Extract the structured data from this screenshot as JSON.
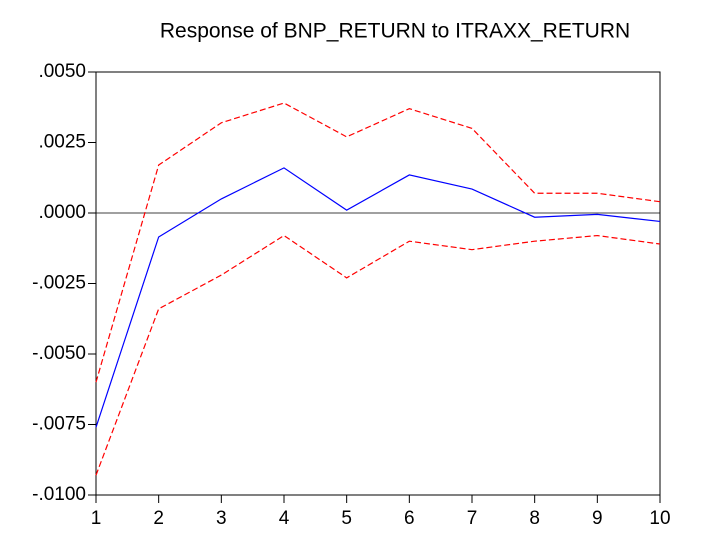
{
  "chart_data": {
    "type": "line",
    "title": "Response of BNP_RETURN to ITRAXX_RETURN",
    "x": [
      1,
      2,
      3,
      4,
      5,
      6,
      7,
      8,
      9,
      10
    ],
    "series": [
      {
        "color": "#0000ff",
        "dash": false,
        "values": [
          -0.0076,
          -0.00085,
          0.0005,
          0.0016,
          0.0001,
          0.00135,
          0.00085,
          -0.00015,
          -5e-05,
          -0.0003
        ]
      },
      {
        "color": "#ff0000",
        "dash": true,
        "values": [
          -0.006,
          0.0017,
          0.0032,
          0.0039,
          0.0027,
          0.0037,
          0.003,
          0.0007,
          0.0007,
          0.0004
        ]
      },
      {
        "color": "#ff0000",
        "dash": true,
        "values": [
          -0.0093,
          -0.0034,
          -0.0022,
          -0.0008,
          -0.0023,
          -0.001,
          -0.0013,
          -0.001,
          -0.0008,
          -0.0011
        ]
      }
    ],
    "xlim": [
      1,
      10
    ],
    "xticks": [
      1,
      2,
      3,
      4,
      5,
      6,
      7,
      8,
      9,
      10
    ],
    "ylim": [
      -0.01,
      0.005
    ],
    "yticks": [
      {
        "value": -0.01,
        "label": "-.0100"
      },
      {
        "value": -0.0075,
        "label": "-.0075"
      },
      {
        "value": -0.005,
        "label": "-.0050"
      },
      {
        "value": -0.0025,
        "label": "-.0025"
      },
      {
        "value": 0,
        "label": ".0000"
      },
      {
        "value": 0.0025,
        "label": ".0025"
      },
      {
        "value": 0.005,
        "label": ".0050"
      }
    ],
    "zero_line": true
  }
}
